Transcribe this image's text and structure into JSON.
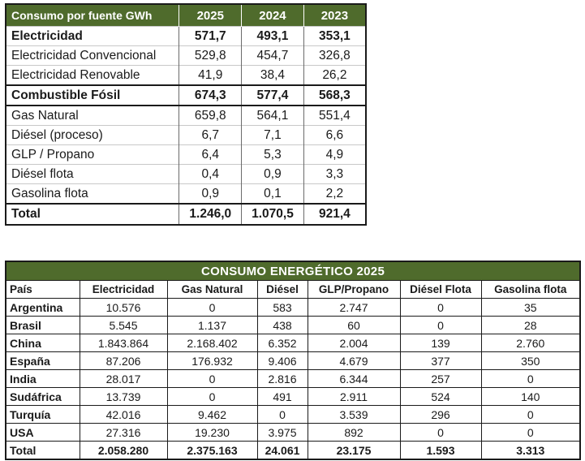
{
  "table1": {
    "header": {
      "label": "Consumo por fuente GWh",
      "years": [
        "2025",
        "2024",
        "2023"
      ]
    },
    "rows": [
      {
        "label": "Electricidad",
        "values": [
          "571,7",
          "493,1",
          "353,1"
        ],
        "style": "bold"
      },
      {
        "label": "Electricidad Convencional",
        "values": [
          "529,8",
          "454,7",
          "326,8"
        ],
        "style": "normal"
      },
      {
        "label": "Electricidad Renovable",
        "values": [
          "41,9",
          "38,4",
          "26,2"
        ],
        "style": "normal"
      },
      {
        "label": "Combustible Fósil",
        "values": [
          "674,3",
          "577,4",
          "568,3"
        ],
        "style": "bold"
      },
      {
        "label": "Gas Natural",
        "values": [
          "659,8",
          "564,1",
          "551,4"
        ],
        "style": "normal"
      },
      {
        "label": "Diésel (proceso)",
        "values": [
          "6,7",
          "7,1",
          "6,6"
        ],
        "style": "normal"
      },
      {
        "label": "GLP / Propano",
        "values": [
          "6,4",
          "5,3",
          "4,9"
        ],
        "style": "normal"
      },
      {
        "label": "Diésel flota",
        "values": [
          "0,4",
          "0,9",
          "3,3"
        ],
        "style": "normal"
      },
      {
        "label": "Gasolina flota",
        "values": [
          "0,9",
          "0,1",
          "2,2"
        ],
        "style": "normal"
      }
    ],
    "total": {
      "label": "Total",
      "values": [
        "1.246,0",
        "1.070,5",
        "921,4"
      ]
    }
  },
  "table2": {
    "title": "CONSUMO ENERGÉTICO 2025",
    "columns": [
      "País",
      "Electricidad",
      "Gas Natural",
      "Diésel",
      "GLP/Propano",
      "Diésel Flota",
      "Gasolina flota"
    ],
    "rows": [
      {
        "country": "Argentina",
        "values": [
          "10.576",
          "0",
          "583",
          "2.747",
          "0",
          "35"
        ]
      },
      {
        "country": "Brasil",
        "values": [
          "5.545",
          "1.137",
          "438",
          "60",
          "0",
          "28"
        ]
      },
      {
        "country": "China",
        "values": [
          "1.843.864",
          "2.168.402",
          "6.352",
          "2.004",
          "139",
          "2.760"
        ]
      },
      {
        "country": "España",
        "values": [
          "87.206",
          "176.932",
          "9.406",
          "4.679",
          "377",
          "350"
        ]
      },
      {
        "country": "India",
        "values": [
          "28.017",
          "0",
          "2.816",
          "6.344",
          "257",
          "0"
        ]
      },
      {
        "country": "Sudáfrica",
        "values": [
          "13.739",
          "0",
          "491",
          "2.911",
          "524",
          "140"
        ]
      },
      {
        "country": "Turquía",
        "values": [
          "42.016",
          "9.462",
          "0",
          "3.539",
          "296",
          "0"
        ]
      },
      {
        "country": "USA",
        "values": [
          "27.316",
          "19.230",
          "3.975",
          "892",
          "0",
          "0"
        ]
      }
    ],
    "total": {
      "label": "Total",
      "values": [
        "2.058.280",
        "2.375.163",
        "24.061",
        "23.175",
        "1.593",
        "3.313"
      ]
    }
  },
  "colors": {
    "header_green": "#4f6b2c",
    "header_text": "#ffffff",
    "border": "#1a1a1a"
  }
}
